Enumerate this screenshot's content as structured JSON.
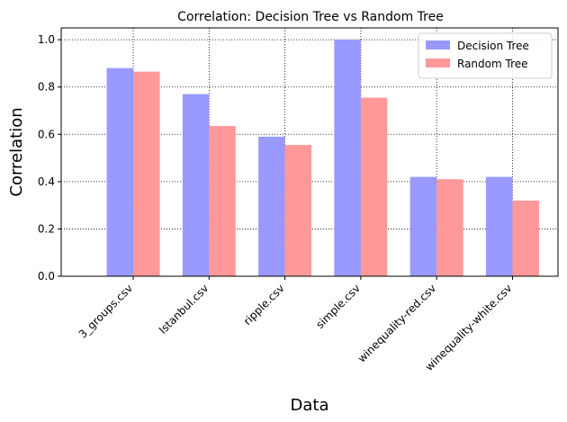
{
  "chart_data": {
    "type": "bar",
    "title": "Correlation: Decision Tree vs Random Tree",
    "xlabel": "Data",
    "ylabel": "Correlation",
    "categories": [
      "3_groups.csv",
      "Istanbul.csv",
      "ripple.csv",
      "simple.csv",
      "winequality-red.csv",
      "winequality-white.csv"
    ],
    "series": [
      {
        "name": "Decision Tree",
        "color": "#9999ff",
        "values": [
          0.88,
          0.77,
          0.59,
          1.0,
          0.42,
          0.42
        ]
      },
      {
        "name": "Random Tree",
        "color": "#ff9999",
        "values": [
          0.865,
          0.635,
          0.555,
          0.755,
          0.41,
          0.32
        ]
      }
    ],
    "ylim": [
      0,
      1.05
    ],
    "yticks": [
      0.0,
      0.2,
      0.4,
      0.6,
      0.8,
      1.0
    ],
    "ytick_labels": [
      "0.0",
      "0.2",
      "0.4",
      "0.6",
      "0.8",
      "1.0"
    ],
    "grid": true,
    "legend": "top-right"
  }
}
